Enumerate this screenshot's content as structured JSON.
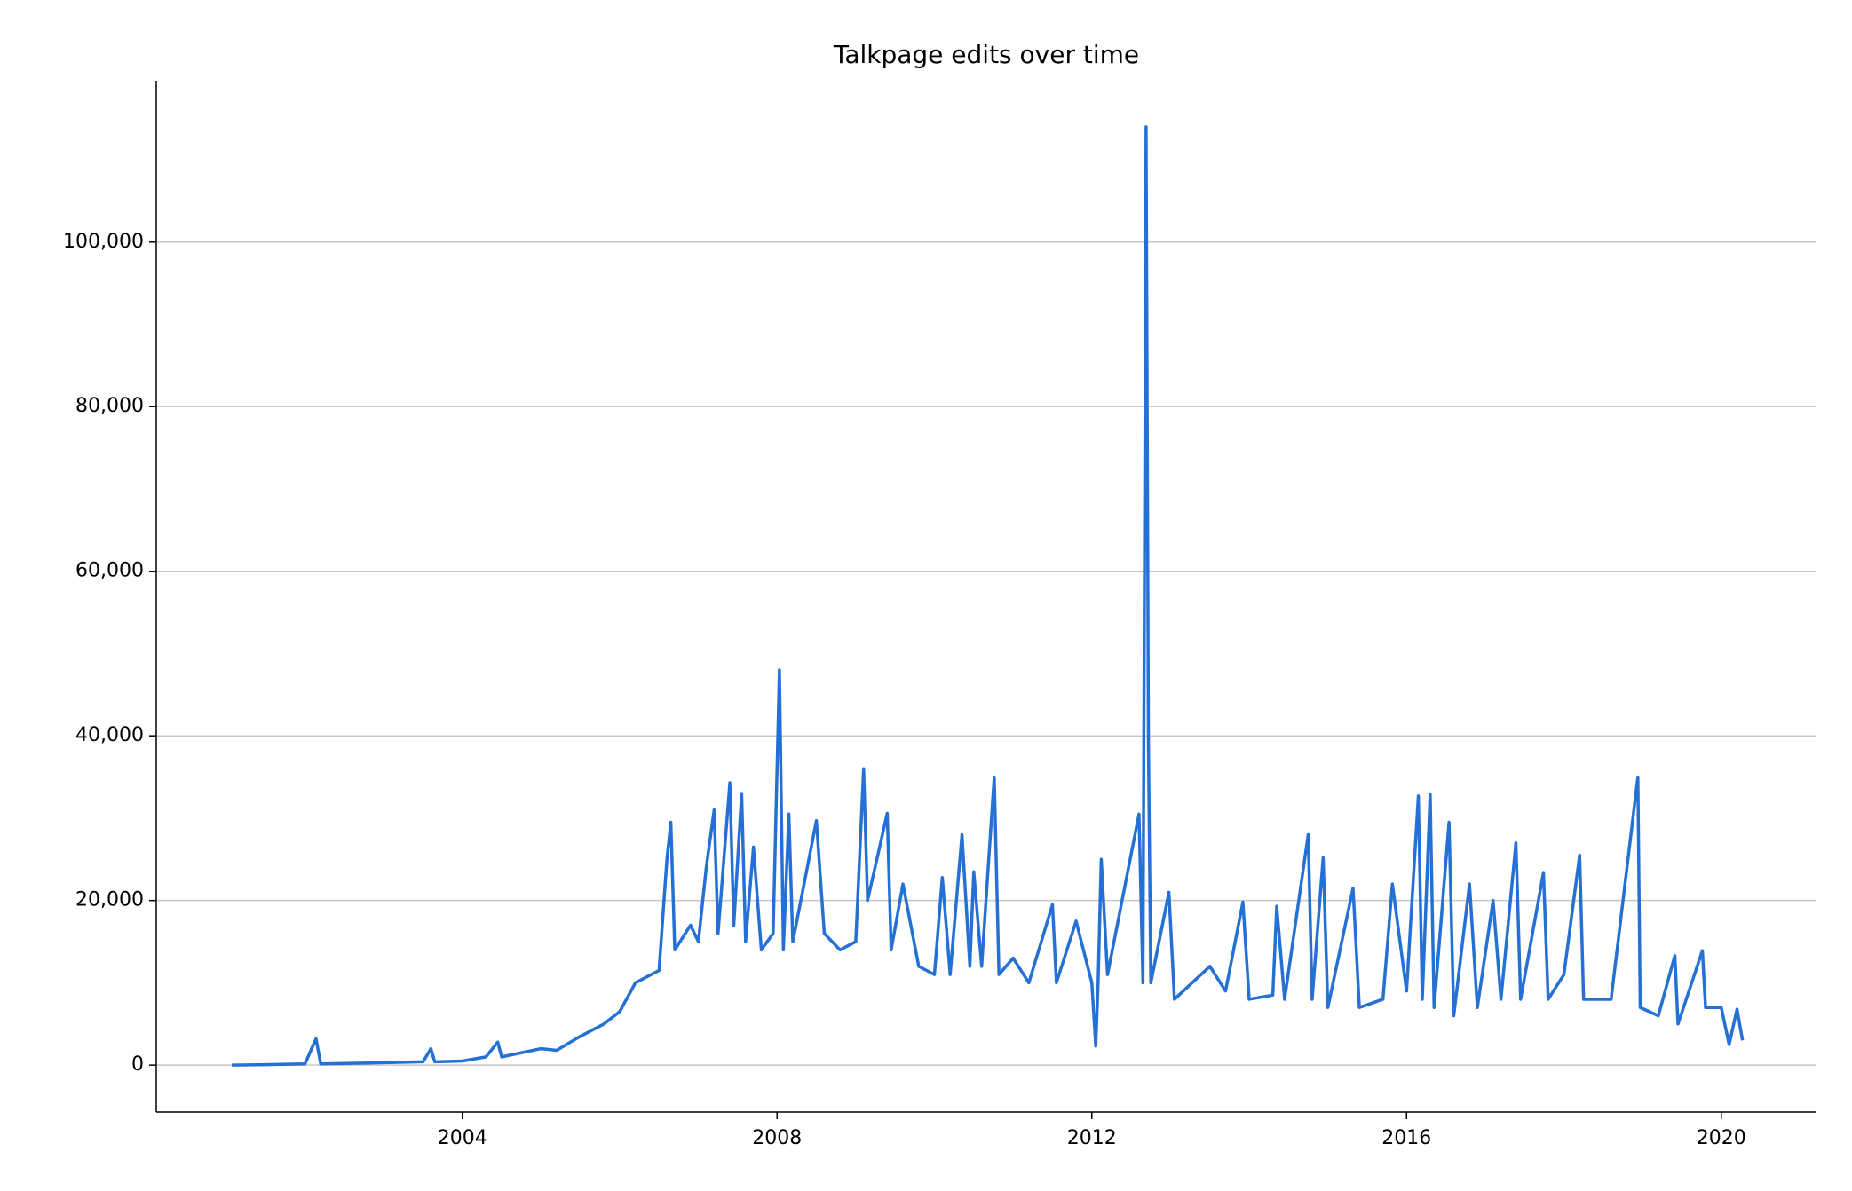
{
  "chart_data": {
    "type": "line",
    "title": "Talkpage edits over time",
    "color": "#2570d4",
    "grid": true,
    "xlim": [
      2000.11,
      2021.21
    ],
    "xticks": [
      2004,
      2008,
      2012,
      2016,
      2020
    ],
    "ylim": [
      -5700,
      119600
    ],
    "yticks": [
      0,
      {
        "value": 20000,
        "label": "20,000"
      },
      {
        "value": 40000,
        "label": "40,000"
      },
      {
        "value": 60000,
        "label": "60,000"
      },
      {
        "value": 80000,
        "label": "80,000"
      },
      {
        "value": 100000,
        "label": "100,000"
      }
    ],
    "x": [
      2001.07,
      2001.5,
      2002.0,
      2002.14,
      2002.2,
      2002.75,
      2003.0,
      2003.5,
      2003.6,
      2003.65,
      2004.0,
      2004.3,
      2004.45,
      2004.5,
      2005.0,
      2005.2,
      2005.5,
      2005.8,
      2006.0,
      2006.2,
      2006.5,
      2006.6,
      2006.65,
      2006.7,
      2006.9,
      2007.0,
      2007.1,
      2007.2,
      2007.25,
      2007.4,
      2007.45,
      2007.55,
      2007.6,
      2007.7,
      2007.8,
      2007.95,
      2008.03,
      2008.08,
      2008.15,
      2008.2,
      2008.5,
      2008.6,
      2008.8,
      2009.0,
      2009.1,
      2009.15,
      2009.4,
      2009.45,
      2009.6,
      2009.8,
      2010.0,
      2010.1,
      2010.2,
      2010.35,
      2010.45,
      2010.5,
      2010.6,
      2010.76,
      2010.82,
      2011.0,
      2011.2,
      2011.5,
      2011.55,
      2011.8,
      2012.0,
      2012.05,
      2012.08,
      2012.12,
      2012.2,
      2012.6,
      2012.65,
      2012.69,
      2012.72,
      2012.75,
      2012.98,
      2013.05,
      2013.5,
      2013.7,
      2013.92,
      2014.0,
      2014.3,
      2014.35,
      2014.45,
      2014.75,
      2014.8,
      2014.94,
      2015.0,
      2015.32,
      2015.4,
      2015.7,
      2015.82,
      2016.0,
      2016.15,
      2016.2,
      2016.3,
      2016.35,
      2016.54,
      2016.6,
      2016.8,
      2016.9,
      2017.1,
      2017.2,
      2017.39,
      2017.45,
      2017.74,
      2017.8,
      2018.0,
      2018.2,
      2018.25,
      2018.6,
      2018.94,
      2018.97,
      2019.2,
      2019.41,
      2019.45,
      2019.76,
      2019.8,
      2020.0,
      2020.1,
      2020.2,
      2020.27
    ],
    "values": [
      0,
      50,
      150,
      3200,
      150,
      250,
      300,
      400,
      2000,
      400,
      500,
      1000,
      2800,
      1000,
      2000,
      1800,
      3500,
      5000,
      6500,
      10000,
      11500,
      25000,
      29500,
      14000,
      17000,
      15000,
      24000,
      31000,
      16000,
      34300,
      17000,
      33000,
      15000,
      26500,
      14000,
      16000,
      48000,
      14000,
      30500,
      15000,
      29700,
      16000,
      14000,
      15000,
      36000,
      20000,
      30600,
      14000,
      22000,
      12000,
      11000,
      22800,
      11000,
      28000,
      12000,
      23500,
      12000,
      35000,
      11000,
      13000,
      10000,
      19500,
      10000,
      17500,
      10000,
      2300,
      10000,
      25000,
      11000,
      30500,
      10000,
      114000,
      38500,
      10000,
      21000,
      8000,
      12000,
      9000,
      19800,
      8000,
      8500,
      19300,
      8000,
      28000,
      8000,
      25200,
      7000,
      21500,
      7000,
      8000,
      22000,
      9000,
      32700,
      8000,
      32900,
      7000,
      29500,
      6000,
      22000,
      7000,
      20000,
      8000,
      27000,
      8000,
      23400,
      8000,
      11000,
      25500,
      8000,
      8000,
      35000,
      7000,
      6000,
      13300,
      5000,
      13900,
      7000,
      7000,
      2500,
      6800,
      3000
    ]
  }
}
